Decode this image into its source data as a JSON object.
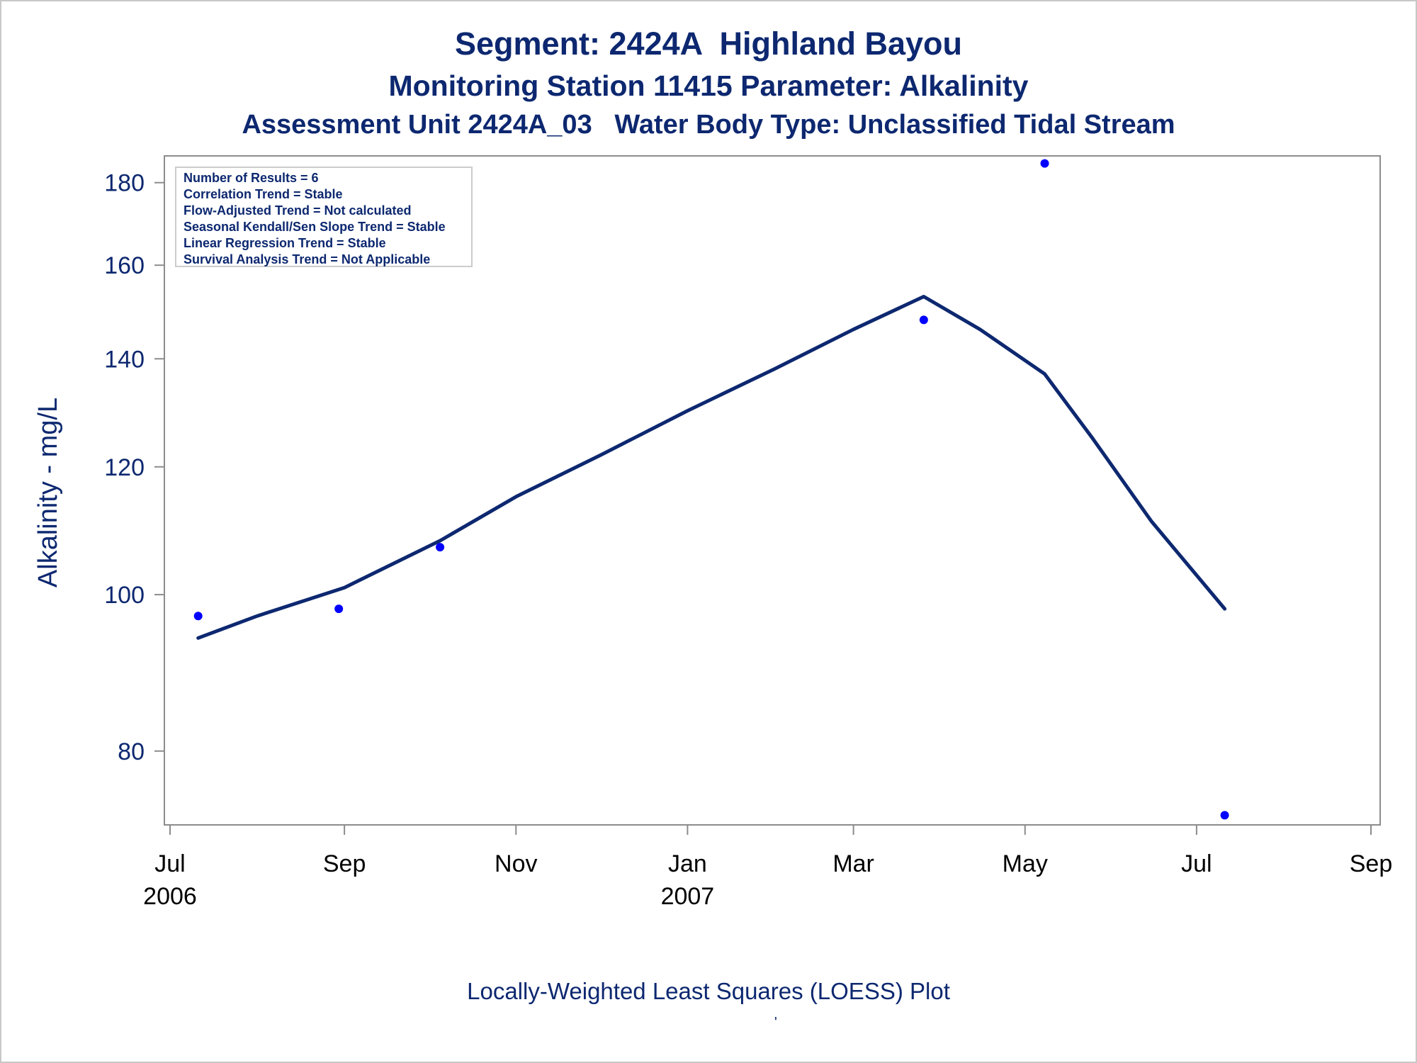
{
  "titles": {
    "line1": "Segment: 2424A  Highland Bayou",
    "line2": "Monitoring Station 11415 Parameter: Alkalinity",
    "line3": "Assessment Unit 2424A_03   Water Body Type: Unclassified Tidal Stream"
  },
  "stats_box": [
    "Number of Results = 6",
    "Correlation Trend = Stable",
    "Flow-Adjusted Trend = Not calculated",
    "Seasonal Kendall/Sen Slope Trend = Stable",
    "Linear Regression Trend = Stable",
    "Survival Analysis Trend = Not Applicable"
  ],
  "footnote": "Locally-Weighted Least Squares (LOESS) Plot",
  "footnote_mark": "'",
  "colors": {
    "text": "#0d2870",
    "line": "#0d2870",
    "points": "#0000ff",
    "axis": "#8c8c8c"
  },
  "chart_data": {
    "type": "scatter",
    "ylabel": "Alkalinity - mg/L",
    "xlabel": "",
    "y_scale": "log",
    "ylim": [
      72,
      187
    ],
    "xlim": [
      "2006-07-01",
      "2007-09-01"
    ],
    "y_ticks": [
      80,
      100,
      120,
      140,
      160,
      180
    ],
    "x_ticks": [
      {
        "date": "2006-07-01",
        "label": "Jul",
        "year": "2006"
      },
      {
        "date": "2006-09-01",
        "label": "Sep",
        "year": ""
      },
      {
        "date": "2006-11-01",
        "label": "Nov",
        "year": ""
      },
      {
        "date": "2007-01-01",
        "label": "Jan",
        "year": "2007"
      },
      {
        "date": "2007-03-01",
        "label": "Mar",
        "year": ""
      },
      {
        "date": "2007-05-01",
        "label": "May",
        "year": ""
      },
      {
        "date": "2007-07-01",
        "label": "Jul",
        "year": ""
      },
      {
        "date": "2007-09-01",
        "label": "Sep",
        "year": ""
      }
    ],
    "grid": false,
    "legend": "top-left",
    "series": [
      {
        "kind": "points",
        "points": [
          {
            "x": "2006-07-11",
            "y": 97
          },
          {
            "x": "2006-08-30",
            "y": 98
          },
          {
            "x": "2006-10-05",
            "y": 107
          },
          {
            "x": "2007-03-26",
            "y": 148
          },
          {
            "x": "2007-05-08",
            "y": 185
          },
          {
            "x": "2007-07-11",
            "y": 73
          }
        ]
      },
      {
        "kind": "loess-line",
        "points": [
          {
            "x": "2006-07-11",
            "y": 94
          },
          {
            "x": "2006-08-01",
            "y": 97
          },
          {
            "x": "2006-09-01",
            "y": 101
          },
          {
            "x": "2006-10-05",
            "y": 108
          },
          {
            "x": "2006-11-01",
            "y": 115
          },
          {
            "x": "2006-12-01",
            "y": 122
          },
          {
            "x": "2007-01-01",
            "y": 130
          },
          {
            "x": "2007-02-01",
            "y": 138
          },
          {
            "x": "2007-03-01",
            "y": 146
          },
          {
            "x": "2007-03-26",
            "y": 153
          },
          {
            "x": "2007-04-15",
            "y": 146
          },
          {
            "x": "2007-05-08",
            "y": 137
          },
          {
            "x": "2007-05-25",
            "y": 125
          },
          {
            "x": "2007-06-15",
            "y": 111
          },
          {
            "x": "2007-07-11",
            "y": 98
          }
        ]
      }
    ]
  }
}
